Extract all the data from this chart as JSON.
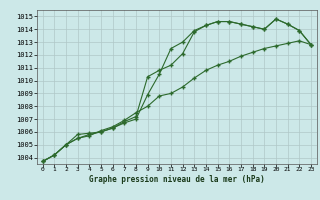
{
  "title": "Graphe pression niveau de la mer (hPa)",
  "bg_color": "#cce8e8",
  "grid_color": "#b0c8c8",
  "line_color": "#2d6a2d",
  "xlim": [
    -0.5,
    23.5
  ],
  "ylim": [
    1003.5,
    1015.5
  ],
  "yticks": [
    1004,
    1005,
    1006,
    1007,
    1008,
    1009,
    1010,
    1011,
    1012,
    1013,
    1014,
    1015
  ],
  "xticks": [
    0,
    1,
    2,
    3,
    4,
    5,
    6,
    7,
    8,
    9,
    10,
    11,
    12,
    13,
    14,
    15,
    16,
    17,
    18,
    19,
    20,
    21,
    22,
    23
  ],
  "series": [
    [
      1003.7,
      1004.2,
      1005.0,
      1005.8,
      1005.9,
      1006.0,
      1006.3,
      1006.8,
      1007.2,
      1010.3,
      1010.8,
      1011.2,
      1012.1,
      1013.8,
      1014.3,
      1014.6,
      1014.6,
      1014.4,
      1014.2,
      1014.0,
      1014.8,
      1014.4,
      1013.9,
      1012.8
    ],
    [
      1003.7,
      1004.2,
      1005.0,
      1005.5,
      1005.7,
      1006.1,
      1006.4,
      1006.9,
      1007.5,
      1008.0,
      1008.8,
      1009.0,
      1009.5,
      1010.2,
      1010.8,
      1011.2,
      1011.5,
      1011.9,
      1012.2,
      1012.5,
      1012.7,
      1012.9,
      1013.1,
      1012.8
    ],
    [
      1003.7,
      1004.2,
      1005.0,
      1005.5,
      1005.8,
      1006.0,
      1006.3,
      1006.7,
      1007.0,
      1008.9,
      1010.5,
      1012.5,
      1013.0,
      1013.9,
      1014.3,
      1014.6,
      1014.6,
      1014.4,
      1014.2,
      1014.0,
      1014.8,
      1014.4,
      1013.9,
      1012.8
    ]
  ]
}
